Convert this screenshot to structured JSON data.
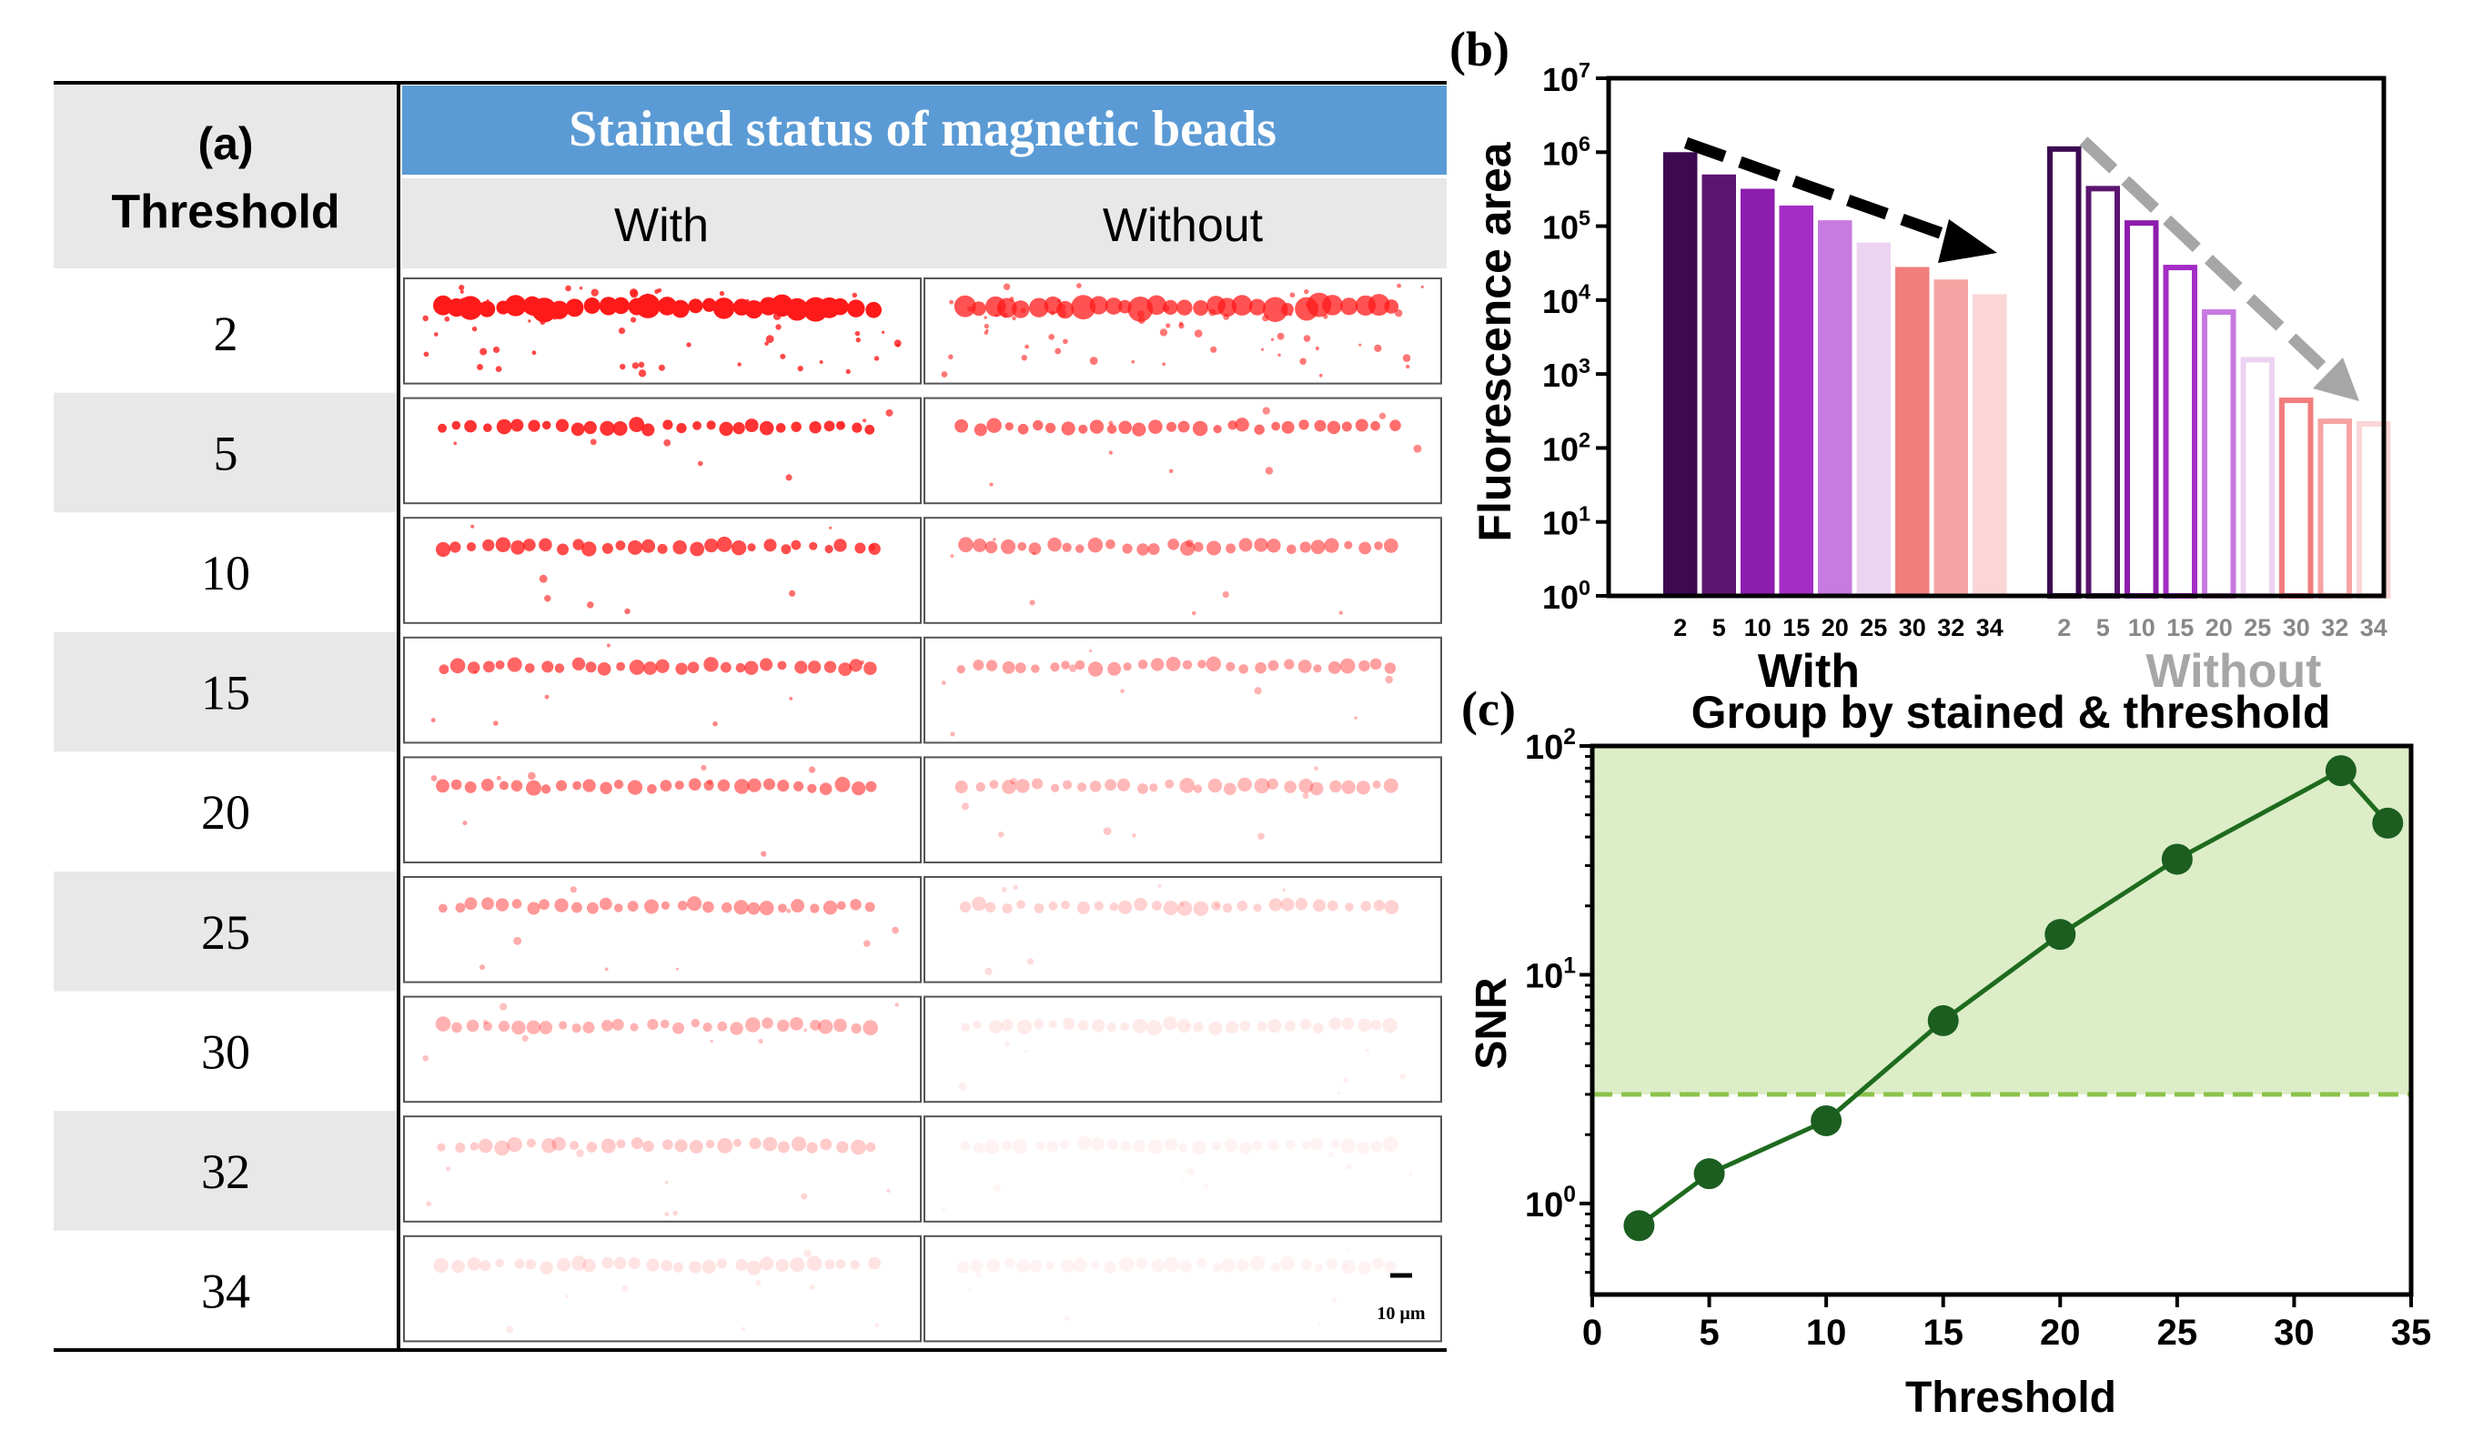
{
  "panel_a": {
    "label": "(a)",
    "header_threshold": "Threshold",
    "header_status": "Stained status of magnetic beads",
    "col_with": "With",
    "col_without": "Without",
    "thresholds": [
      "2",
      "5",
      "10",
      "15",
      "20",
      "25",
      "30",
      "32",
      "34"
    ],
    "scale_bar_label": "10 µm"
  },
  "panel_b": {
    "label": "(b)",
    "ylabel": "Fluorescence area",
    "yticks": [
      "10^0",
      "10^1",
      "10^2",
      "10^3",
      "10^4",
      "10^5",
      "10^6",
      "10^7"
    ],
    "group_with": "With",
    "group_without": "Without"
  },
  "panel_c": {
    "label": "(c)",
    "title": "Group by stained & threshold",
    "xlabel": "Threshold",
    "ylabel": "SNR",
    "xticks": [
      "0",
      "5",
      "10",
      "15",
      "20",
      "25",
      "30",
      "35"
    ],
    "yticks": [
      "10^0",
      "10^1",
      "10^2"
    ]
  },
  "colors": {
    "header_blue": "#5b9bd5",
    "gray_band": "#e8e8e8",
    "bead_red": "#ff1a1a",
    "green_line": "#1e6b1e",
    "green_marker": "#1b5e20",
    "green_fill": "#dcedc8",
    "green_dash": "#8bc34a",
    "arrow_black": "#000000",
    "arrow_gray": "#a6a6a6"
  },
  "chart_data": [
    {
      "type": "bar",
      "title": "",
      "xlabel": "",
      "ylabel": "Fluorescence area",
      "yscale": "log",
      "ylim": [
        1,
        10000000
      ],
      "categories": [
        "2",
        "5",
        "10",
        "15",
        "20",
        "25",
        "30",
        "32",
        "34"
      ],
      "series": [
        {
          "name": "With",
          "style": "filled",
          "values": [
            1000000,
            500000,
            320000,
            190000,
            120000,
            60000,
            28000,
            19000,
            12000
          ],
          "colors": [
            "#3d0a52",
            "#5c1570",
            "#8d1dad",
            "#a32dc5",
            "#c77ae0",
            "#ecd3f2",
            "#f27d7d",
            "#f7a3a3",
            "#fbd6d6"
          ]
        },
        {
          "name": "Without",
          "style": "outlined",
          "values": [
            1200000,
            350000,
            120000,
            30000,
            7500,
            1700,
            480,
            250,
            230
          ],
          "colors": [
            "#3d0a52",
            "#5c1570",
            "#8d1dad",
            "#a32dc5",
            "#c77ae0",
            "#ecd3f2",
            "#f27d7d",
            "#f7a3a3",
            "#fbd6d6"
          ]
        }
      ],
      "annotations": [
        "black dashed arrow descending over With bars",
        "gray dashed arrow descending over Without bars"
      ]
    },
    {
      "type": "line",
      "title": "Group by stained & threshold",
      "xlabel": "Threshold",
      "ylabel": "SNR",
      "yscale": "log",
      "xlim": [
        0,
        35
      ],
      "ylim": [
        0.4,
        100
      ],
      "x": [
        2,
        5,
        10,
        15,
        20,
        25,
        32,
        34
      ],
      "series": [
        {
          "name": "SNR",
          "values": [
            0.8,
            1.35,
            2.3,
            6.3,
            15,
            32,
            78,
            46
          ]
        }
      ],
      "threshold_line": 3,
      "shaded_region": "above threshold line"
    }
  ]
}
